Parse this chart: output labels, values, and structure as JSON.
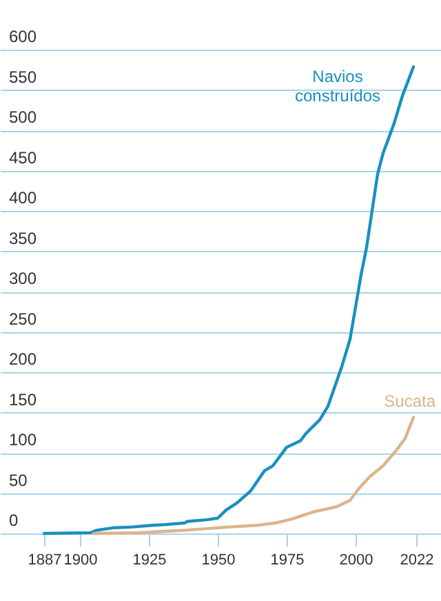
{
  "chart_data": {
    "type": "line",
    "xlim": [
      1871,
      2031
    ],
    "xticks": [
      1887,
      1900,
      1925,
      1950,
      1975,
      2000,
      2022
    ],
    "ylim": [
      0,
      662
    ],
    "yticks": [
      0,
      50,
      100,
      150,
      200,
      250,
      300,
      350,
      400,
      450,
      500,
      550,
      600
    ],
    "grid": "y",
    "marker": "none",
    "line_style": "solid",
    "series": [
      {
        "name": "Navios construídos",
        "color": "#1a8fc0",
        "x": [
          1887,
          1904,
          1906,
          1912,
          1919,
          1926,
          1931,
          1938,
          1939,
          1946,
          1950,
          1953,
          1957,
          1962,
          1967,
          1970,
          1975,
          1980,
          1982,
          1987,
          1990,
          1995,
          1998,
          2002,
          2004,
          2008,
          2010,
          2014,
          2017,
          2021
        ],
        "values": [
          0,
          1,
          4,
          7,
          8,
          10,
          11,
          13,
          15,
          17,
          19,
          29,
          38,
          53,
          78,
          84,
          107,
          115,
          124,
          141,
          158,
          207,
          241,
          321,
          355,
          446,
          472,
          509,
          543,
          579
        ]
      },
      {
        "name": "Sucata",
        "color": "#dcb48a",
        "x": [
          1905,
          1922,
          1938,
          1954,
          1964,
          1971,
          1977,
          1985,
          1993,
          1998,
          2001,
          2005,
          2010,
          2015,
          2018,
          2021
        ],
        "values": [
          0,
          1,
          4,
          8,
          10,
          13,
          18,
          27,
          33,
          41,
          55,
          70,
          84,
          104,
          118,
          144
        ]
      }
    ]
  }
}
